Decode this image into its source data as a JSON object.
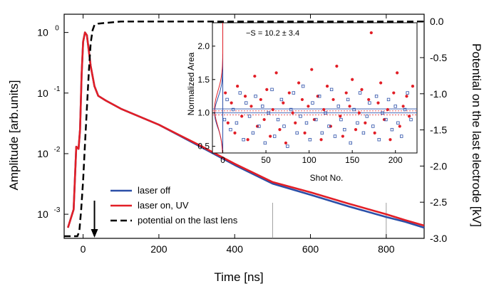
{
  "chart_data": [
    {
      "type": "line",
      "xlabel": "Time [ns]",
      "ylabel": "Amplitude [arb.units]",
      "y2label": "Potential on the last electrode [kV]",
      "xlim": [
        -50,
        900
      ],
      "ylim": [
        0.0004,
        2
      ],
      "yscale": "log",
      "y2lim": [
        -3.0,
        0.1
      ],
      "x_ticks": [
        0,
        200,
        400,
        600,
        800
      ],
      "y_ticks": [
        {
          "value": 1,
          "label": "10",
          "exp": "0"
        },
        {
          "value": 0.1,
          "label": "10",
          "exp": "-1"
        },
        {
          "value": 0.01,
          "label": "10",
          "exp": "-2"
        },
        {
          "value": 0.001,
          "label": "10",
          "exp": "-3"
        }
      ],
      "y2_ticks": [
        "0.0",
        "-0.5",
        "-1.0",
        "-1.5",
        "-2.0",
        "-2.5",
        "-3.0"
      ],
      "legend_position": "bottom-center",
      "series": [
        {
          "name": "laser off",
          "color": "#2b4fa8",
          "style": "solid",
          "axis": "left",
          "x": [
            -40,
            -25,
            -18,
            -12,
            -8,
            -4,
            0,
            5,
            10,
            15,
            20,
            25,
            30,
            40,
            60,
            100,
            200,
            300,
            400,
            500,
            600,
            700,
            800,
            850,
            900
          ],
          "y": [
            0.0006,
            0.0012,
            0.013,
            0.012,
            0.025,
            0.2,
            0.7,
            1.0,
            0.9,
            0.5,
            0.28,
            0.19,
            0.13,
            0.09,
            0.075,
            0.055,
            0.03,
            0.014,
            0.0065,
            0.0032,
            0.0021,
            0.00135,
            0.0009,
            0.00075,
            0.0006
          ]
        },
        {
          "name": "laser on, UV",
          "color": "#e21e26",
          "style": "solid",
          "axis": "left",
          "x": [
            -40,
            -25,
            -18,
            -12,
            -8,
            -4,
            0,
            5,
            10,
            15,
            20,
            25,
            30,
            40,
            60,
            100,
            200,
            300,
            400,
            500,
            600,
            700,
            800,
            850,
            900
          ],
          "y": [
            0.0006,
            0.0012,
            0.013,
            0.012,
            0.025,
            0.2,
            0.7,
            1.0,
            0.9,
            0.5,
            0.28,
            0.19,
            0.13,
            0.09,
            0.075,
            0.055,
            0.03,
            0.0145,
            0.0068,
            0.0034,
            0.0023,
            0.0015,
            0.001,
            0.0008,
            0.00065
          ]
        },
        {
          "name": "potential on the last lens",
          "color": "#000000",
          "style": "dashed",
          "axis": "right",
          "x": [
            -50,
            -15,
            -10,
            -5,
            0,
            5,
            10,
            15,
            20,
            25,
            30,
            40,
            60,
            100,
            300,
            600,
            900
          ],
          "y": [
            -2.97,
            -2.97,
            -2.9,
            -2.6,
            -2.2,
            -1.7,
            -1.2,
            -0.7,
            -0.3,
            -0.12,
            -0.05,
            -0.03,
            -0.02,
            0.0,
            0.0,
            0.0,
            0.0
          ]
        }
      ],
      "annotations": {
        "arrow_x": 30,
        "vlines_x": [
          500,
          800
        ]
      }
    },
    {
      "type": "scatter",
      "subplot": "inset",
      "xlabel": "Shot No.",
      "ylabel": "Normalized Area",
      "xlim": [
        -12,
        225
      ],
      "ylim": [
        0.4,
        2.35
      ],
      "x_ticks": [
        0,
        50,
        100,
        150,
        200
      ],
      "y_ticks": [
        "0.5",
        "1.0",
        "1.5",
        "2.0"
      ],
      "annotation": "−S = 10.2 ± 3.4",
      "hlines": [
        {
          "y": 1.0,
          "color": "#2b4fa8"
        },
        {
          "y": 1.03,
          "color": "#e21e26"
        },
        {
          "y": 1.06,
          "color": "#2b4fa8"
        },
        {
          "y": 0.97,
          "color": "#e21e26"
        }
      ],
      "series": [
        {
          "color": "#e21e26",
          "marker": "filled-circle",
          "x": [
            3,
            6,
            10,
            14,
            17,
            22,
            26,
            29,
            33,
            37,
            40,
            44,
            48,
            51,
            55,
            58,
            62,
            66,
            70,
            73,
            77,
            81,
            84,
            88,
            92,
            95,
            99,
            103,
            106,
            110,
            114,
            117,
            121,
            125,
            128,
            132,
            136,
            139,
            143,
            147,
            150,
            154,
            158,
            161,
            165,
            169,
            172,
            176,
            180,
            183,
            187,
            191,
            194,
            198,
            202,
            205,
            209,
            213,
            216,
            220
          ],
          "y": [
            1.3,
            0.85,
            1.15,
            0.7,
            1.4,
            0.95,
            1.25,
            0.6,
            1.1,
            1.55,
            0.8,
            1.2,
            0.9,
            1.35,
            0.65,
            1.05,
            1.6,
            0.75,
            1.15,
            0.55,
            1.3,
            1.0,
            0.85,
            1.45,
            1.2,
            0.7,
            1.1,
            1.65,
            0.9,
            1.25,
            0.6,
            1.05,
            1.4,
            0.8,
            1.2,
            1.7,
            0.95,
            0.65,
            1.3,
            1.1,
            1.5,
            0.75,
            1.0,
            1.35,
            0.85,
            1.2,
            2.2,
            0.7,
            1.15,
            1.45,
            0.9,
            1.05,
            0.6,
            1.3,
            1.6,
            0.8,
            1.1,
            1.25,
            0.95,
            1.4
          ]
        },
        {
          "color": "#2b4fa8",
          "marker": "open-square",
          "x": [
            2,
            5,
            9,
            12,
            16,
            20,
            24,
            27,
            31,
            35,
            38,
            42,
            46,
            49,
            53,
            57,
            60,
            64,
            68,
            71,
            75,
            79,
            82,
            86,
            90,
            93,
            97,
            101,
            104,
            108,
            112,
            115,
            119,
            123,
            126,
            130,
            134,
            137,
            141,
            145,
            148,
            152,
            156,
            159,
            163,
            167,
            170,
            174,
            178,
            181,
            185,
            189,
            192,
            196,
            200,
            203,
            207,
            211,
            214,
            218
          ],
          "y": [
            0.9,
            1.2,
            0.75,
            1.05,
            0.85,
            1.3,
            0.6,
            1.15,
            0.95,
            0.7,
            1.25,
            0.8,
            1.1,
            0.55,
            1.0,
            1.35,
            0.65,
            0.9,
            1.2,
            0.8,
            0.5,
            1.05,
            1.3,
            0.7,
            0.95,
            1.4,
            0.85,
            0.6,
            1.15,
            0.9,
            1.25,
            0.7,
            1.0,
            0.8,
            1.35,
            0.65,
            1.1,
            0.9,
            0.75,
            1.2,
            0.55,
            1.05,
            0.85,
            1.3,
            0.7,
            0.95,
            1.15,
            0.8,
            1.25,
            0.6,
            1.0,
            0.9,
            1.2,
            0.75,
            1.1,
            0.85,
            0.65,
            1.05,
            1.3,
            0.9
          ]
        }
      ]
    }
  ]
}
